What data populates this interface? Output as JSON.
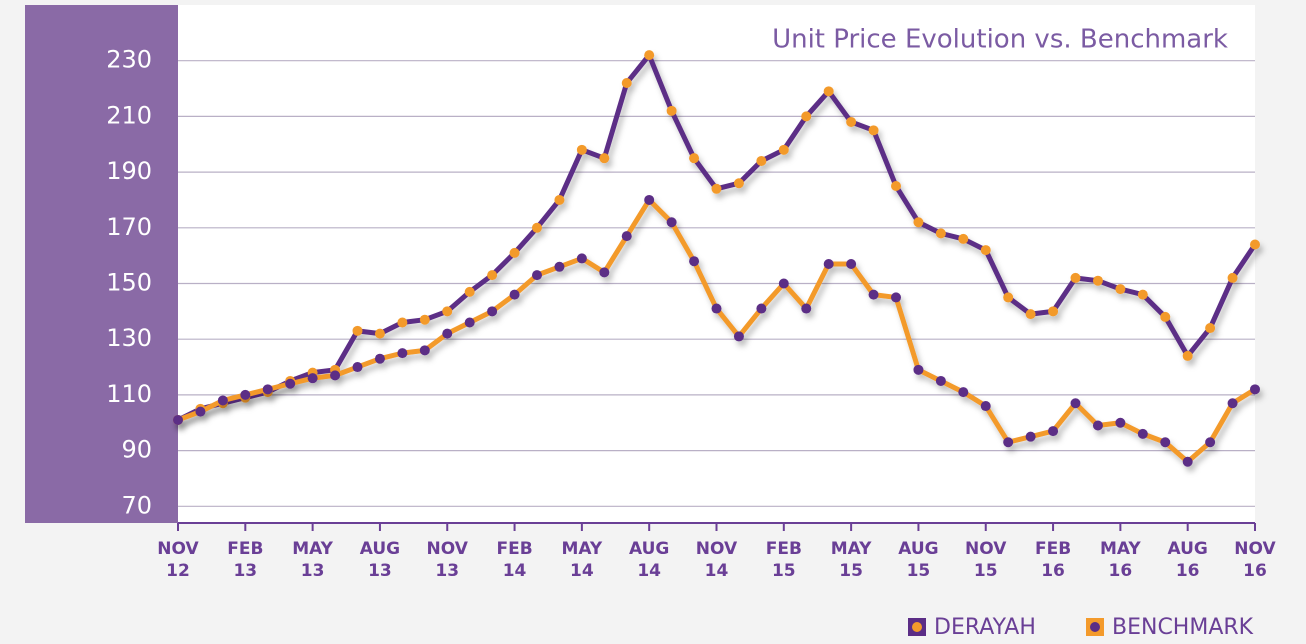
{
  "chart_data": {
    "type": "line",
    "title": "Unit Price Evolution vs. Benchmark",
    "categories": [
      "NOV 12",
      null,
      null,
      "FEB 13",
      null,
      null,
      "MAY 13",
      null,
      null,
      "AUG 13",
      null,
      null,
      "NOV 13",
      null,
      null,
      "FEB 14",
      null,
      null,
      "MAY 14",
      null,
      null,
      "AUG 14",
      null,
      null,
      "NOV 14",
      null,
      null,
      "FEB 15",
      null,
      null,
      "MAY 15",
      null,
      null,
      "AUG 15",
      null,
      null,
      "NOV 15",
      null,
      null,
      "FEB 16",
      null,
      null,
      "MAY 16",
      null,
      null,
      "AUG 16",
      null,
      null,
      "NOV 16"
    ],
    "series": [
      {
        "name": "DERAYAH",
        "color": "#5b2d86",
        "marker_color": "#f39a2b",
        "values": [
          101,
          105,
          107,
          109,
          111,
          115,
          118,
          119,
          133,
          132,
          136,
          137,
          140,
          147,
          153,
          161,
          170,
          180,
          198,
          195,
          222,
          232,
          212,
          195,
          184,
          186,
          194,
          198,
          210,
          219,
          208,
          205,
          185,
          172,
          168,
          166,
          162,
          145,
          139,
          140,
          152,
          151,
          148,
          146,
          138,
          124,
          134,
          152,
          164
        ]
      },
      {
        "name": "BENCHMARK",
        "color": "#f39a2b",
        "marker_color": "#5b2d86",
        "values": [
          101,
          104,
          108,
          110,
          112,
          114,
          116,
          117,
          120,
          123,
          125,
          126,
          132,
          136,
          140,
          146,
          153,
          156,
          159,
          154,
          167,
          180,
          172,
          158,
          141,
          131,
          141,
          150,
          141,
          157,
          157,
          146,
          145,
          119,
          115,
          111,
          106,
          93,
          95,
          97,
          107,
          99,
          100,
          96,
          93,
          86,
          93,
          107,
          112
        ]
      }
    ],
    "ylim": [
      64,
      250
    ],
    "yticks": [
      70,
      90,
      110,
      130,
      150,
      170,
      190,
      210,
      230
    ],
    "grid": true
  }
}
